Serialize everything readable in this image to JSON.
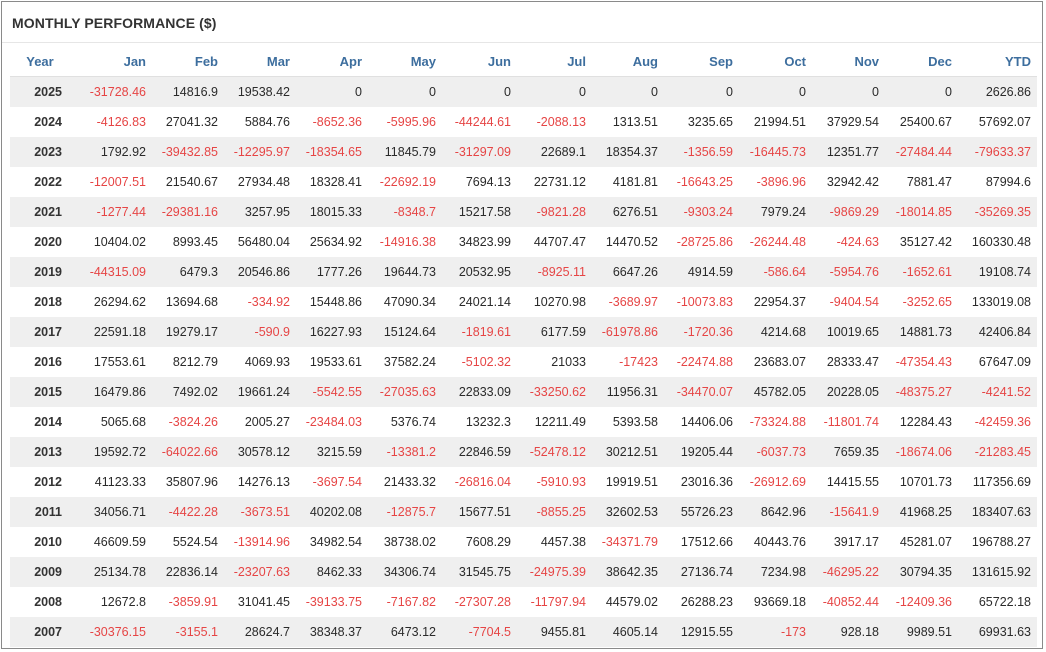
{
  "title": "MONTHLY PERFORMANCE ($)",
  "headers": [
    "Year",
    "Jan",
    "Feb",
    "Mar",
    "Apr",
    "May",
    "Jun",
    "Jul",
    "Aug",
    "Sep",
    "Oct",
    "Nov",
    "Dec",
    "YTD"
  ],
  "colors": {
    "negative": "#e64545",
    "header": "#3d6e9e",
    "row_shade": "#efefef"
  },
  "rows": [
    [
      "2025",
      "-31728.46",
      "14816.9",
      "19538.42",
      "0",
      "0",
      "0",
      "0",
      "0",
      "0",
      "0",
      "0",
      "0",
      "2626.86"
    ],
    [
      "2024",
      "-4126.83",
      "27041.32",
      "5884.76",
      "-8652.36",
      "-5995.96",
      "-44244.61",
      "-2088.13",
      "1313.51",
      "3235.65",
      "21994.51",
      "37929.54",
      "25400.67",
      "57692.07"
    ],
    [
      "2023",
      "1792.92",
      "-39432.85",
      "-12295.97",
      "-18354.65",
      "11845.79",
      "-31297.09",
      "22689.1",
      "18354.37",
      "-1356.59",
      "-16445.73",
      "12351.77",
      "-27484.44",
      "-79633.37"
    ],
    [
      "2022",
      "-12007.51",
      "21540.67",
      "27934.48",
      "18328.41",
      "-22692.19",
      "7694.13",
      "22731.12",
      "4181.81",
      "-16643.25",
      "-3896.96",
      "32942.42",
      "7881.47",
      "87994.6"
    ],
    [
      "2021",
      "-1277.44",
      "-29381.16",
      "3257.95",
      "18015.33",
      "-8348.7",
      "15217.58",
      "-9821.28",
      "6276.51",
      "-9303.24",
      "7979.24",
      "-9869.29",
      "-18014.85",
      "-35269.35"
    ],
    [
      "2020",
      "10404.02",
      "8993.45",
      "56480.04",
      "25634.92",
      "-14916.38",
      "34823.99",
      "44707.47",
      "14470.52",
      "-28725.86",
      "-26244.48",
      "-424.63",
      "35127.42",
      "160330.48"
    ],
    [
      "2019",
      "-44315.09",
      "6479.3",
      "20546.86",
      "1777.26",
      "19644.73",
      "20532.95",
      "-8925.11",
      "6647.26",
      "4914.59",
      "-586.64",
      "-5954.76",
      "-1652.61",
      "19108.74"
    ],
    [
      "2018",
      "26294.62",
      "13694.68",
      "-334.92",
      "15448.86",
      "47090.34",
      "24021.14",
      "10270.98",
      "-3689.97",
      "-10073.83",
      "22954.37",
      "-9404.54",
      "-3252.65",
      "133019.08"
    ],
    [
      "2017",
      "22591.18",
      "19279.17",
      "-590.9",
      "16227.93",
      "15124.64",
      "-1819.61",
      "6177.59",
      "-61978.86",
      "-1720.36",
      "4214.68",
      "10019.65",
      "14881.73",
      "42406.84"
    ],
    [
      "2016",
      "17553.61",
      "8212.79",
      "4069.93",
      "19533.61",
      "37582.24",
      "-5102.32",
      "21033",
      "-17423",
      "-22474.88",
      "23683.07",
      "28333.47",
      "-47354.43",
      "67647.09"
    ],
    [
      "2015",
      "16479.86",
      "7492.02",
      "19661.24",
      "-5542.55",
      "-27035.63",
      "22833.09",
      "-33250.62",
      "11956.31",
      "-34470.07",
      "45782.05",
      "20228.05",
      "-48375.27",
      "-4241.52"
    ],
    [
      "2014",
      "5065.68",
      "-3824.26",
      "2005.27",
      "-23484.03",
      "5376.74",
      "13232.3",
      "12211.49",
      "5393.58",
      "14406.06",
      "-73324.88",
      "-11801.74",
      "12284.43",
      "-42459.36"
    ],
    [
      "2013",
      "19592.72",
      "-64022.66",
      "30578.12",
      "3215.59",
      "-13381.2",
      "22846.59",
      "-52478.12",
      "30212.51",
      "19205.44",
      "-6037.73",
      "7659.35",
      "-18674.06",
      "-21283.45"
    ],
    [
      "2012",
      "41123.33",
      "35807.96",
      "14276.13",
      "-3697.54",
      "21433.32",
      "-26816.04",
      "-5910.93",
      "19919.51",
      "23016.36",
      "-26912.69",
      "14415.55",
      "10701.73",
      "117356.69"
    ],
    [
      "2011",
      "34056.71",
      "-4422.28",
      "-3673.51",
      "40202.08",
      "-12875.7",
      "15677.51",
      "-8855.25",
      "32602.53",
      "55726.23",
      "8642.96",
      "-15641.9",
      "41968.25",
      "183407.63"
    ],
    [
      "2010",
      "46609.59",
      "5524.54",
      "-13914.96",
      "34982.54",
      "38738.02",
      "7608.29",
      "4457.38",
      "-34371.79",
      "17512.66",
      "40443.76",
      "3917.17",
      "45281.07",
      "196788.27"
    ],
    [
      "2009",
      "25134.78",
      "22836.14",
      "-23207.63",
      "8462.33",
      "34306.74",
      "31545.75",
      "-24975.39",
      "38642.35",
      "27136.74",
      "7234.98",
      "-46295.22",
      "30794.35",
      "131615.92"
    ],
    [
      "2008",
      "12672.8",
      "-3859.91",
      "31041.45",
      "-39133.75",
      "-7167.82",
      "-27307.28",
      "-11797.94",
      "44579.02",
      "26288.23",
      "93669.18",
      "-40852.44",
      "-12409.36",
      "65722.18"
    ],
    [
      "2007",
      "-30376.15",
      "-3155.1",
      "28624.7",
      "38348.37",
      "6473.12",
      "-7704.5",
      "9455.81",
      "4605.14",
      "12915.55",
      "-173",
      "928.18",
      "9989.51",
      "69931.63"
    ]
  ]
}
